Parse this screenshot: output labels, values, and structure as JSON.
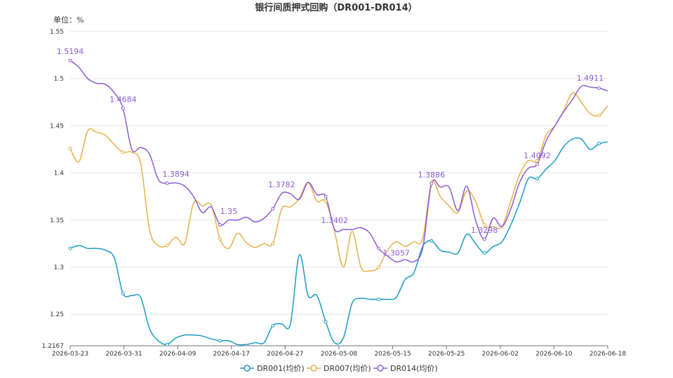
{
  "chart_data": {
    "type": "line",
    "title": "银行间质押式回购（DR001-DR014）",
    "unit_label": "单位：%",
    "x_ticks": [
      "2026-03-23",
      "2026-03-31",
      "2026-04-09",
      "2026-04-17",
      "2026-04-27",
      "2026-05-08",
      "2026-05-15",
      "2026-05-25",
      "2026-06-02",
      "2026-06-10",
      "2026-06-18"
    ],
    "y_ticks": [
      "1.55",
      "1.5",
      "1.45",
      "1.4",
      "1.35",
      "1.3",
      "1.25",
      "1.2167"
    ],
    "ylim": [
      1.2167,
      1.55
    ],
    "grid": true,
    "legend_position": "bottom",
    "series": [
      {
        "name": "DR001(均价)",
        "color": "#1a9bc4",
        "points": [
          [
            0,
            1.32
          ],
          [
            3,
            1.323
          ],
          [
            6,
            1.32
          ],
          [
            9,
            1.32
          ],
          [
            12,
            1.318
          ],
          [
            15,
            1.31
          ],
          [
            18,
            1.272
          ],
          [
            21,
            1.27
          ],
          [
            24,
            1.268
          ],
          [
            27,
            1.235
          ],
          [
            30,
            1.222
          ],
          [
            33,
            1.218
          ],
          [
            36,
            1.225
          ],
          [
            39,
            1.228
          ],
          [
            42,
            1.228
          ],
          [
            45,
            1.227
          ],
          [
            48,
            1.224
          ],
          [
            51,
            1.222
          ],
          [
            54,
            1.222
          ],
          [
            57,
            1.218
          ],
          [
            60,
            1.218
          ],
          [
            63,
            1.22
          ],
          [
            66,
            1.22
          ],
          [
            69,
            1.238
          ],
          [
            72,
            1.24
          ],
          [
            75,
            1.24
          ],
          [
            78,
            1.313
          ],
          [
            81,
            1.27
          ],
          [
            84,
            1.27
          ],
          [
            87,
            1.242
          ],
          [
            90,
            1.22
          ],
          [
            93,
            1.225
          ],
          [
            96,
            1.262
          ],
          [
            99,
            1.267
          ],
          [
            102,
            1.266
          ],
          [
            105,
            1.266
          ],
          [
            108,
            1.266
          ],
          [
            111,
            1.268
          ],
          [
            114,
            1.287
          ],
          [
            117,
            1.294
          ],
          [
            120,
            1.322
          ],
          [
            123,
            1.328
          ],
          [
            126,
            1.318
          ],
          [
            129,
            1.316
          ],
          [
            132,
            1.315
          ],
          [
            135,
            1.335
          ],
          [
            138,
            1.325
          ],
          [
            141,
            1.315
          ],
          [
            144,
            1.322
          ],
          [
            147,
            1.327
          ],
          [
            150,
            1.345
          ],
          [
            153,
            1.368
          ],
          [
            156,
            1.394
          ],
          [
            159,
            1.394
          ],
          [
            162,
            1.404
          ],
          [
            165,
            1.413
          ],
          [
            168,
            1.428
          ],
          [
            171,
            1.436
          ],
          [
            174,
            1.436
          ],
          [
            177,
            1.425
          ],
          [
            180,
            1.431
          ],
          [
            183,
            1.433
          ]
        ]
      },
      {
        "name": "DR007(均价)",
        "color": "#e6b04a",
        "points": [
          [
            0,
            1.426
          ],
          [
            3,
            1.412
          ],
          [
            6,
            1.445
          ],
          [
            9,
            1.443
          ],
          [
            12,
            1.44
          ],
          [
            15,
            1.43
          ],
          [
            18,
            1.422
          ],
          [
            21,
            1.422
          ],
          [
            24,
            1.41
          ],
          [
            27,
            1.34
          ],
          [
            30,
            1.323
          ],
          [
            33,
            1.323
          ],
          [
            36,
            1.332
          ],
          [
            39,
            1.325
          ],
          [
            42,
            1.368
          ],
          [
            45,
            1.365
          ],
          [
            48,
            1.366
          ],
          [
            51,
            1.33
          ],
          [
            54,
            1.32
          ],
          [
            57,
            1.336
          ],
          [
            60,
            1.326
          ],
          [
            63,
            1.321
          ],
          [
            66,
            1.325
          ],
          [
            69,
            1.325
          ],
          [
            72,
            1.362
          ],
          [
            75,
            1.364
          ],
          [
            78,
            1.373
          ],
          [
            81,
            1.39
          ],
          [
            84,
            1.37
          ],
          [
            87,
            1.37
          ],
          [
            90,
            1.338
          ],
          [
            93,
            1.3
          ],
          [
            96,
            1.338
          ],
          [
            99,
            1.3
          ],
          [
            102,
            1.296
          ],
          [
            105,
            1.3
          ],
          [
            108,
            1.318
          ],
          [
            111,
            1.327
          ],
          [
            114,
            1.322
          ],
          [
            117,
            1.327
          ],
          [
            120,
            1.33
          ],
          [
            123,
            1.39
          ],
          [
            126,
            1.375
          ],
          [
            129,
            1.365
          ],
          [
            132,
            1.358
          ],
          [
            135,
            1.381
          ],
          [
            138,
            1.37
          ],
          [
            141,
            1.345
          ],
          [
            144,
            1.343
          ],
          [
            147,
            1.343
          ],
          [
            150,
            1.37
          ],
          [
            153,
            1.398
          ],
          [
            156,
            1.413
          ],
          [
            159,
            1.413
          ],
          [
            162,
            1.44
          ],
          [
            165,
            1.45
          ],
          [
            168,
            1.466
          ],
          [
            171,
            1.485
          ],
          [
            174,
            1.475
          ],
          [
            177,
            1.463
          ],
          [
            180,
            1.461
          ],
          [
            183,
            1.471
          ]
        ]
      },
      {
        "name": "DR014(均价)",
        "color": "#8c5cd6",
        "points": [
          [
            0,
            1.5194
          ],
          [
            3,
            1.512
          ],
          [
            6,
            1.5
          ],
          [
            9,
            1.495
          ],
          [
            12,
            1.494
          ],
          [
            15,
            1.485
          ],
          [
            18,
            1.4684
          ],
          [
            21,
            1.425
          ],
          [
            24,
            1.427
          ],
          [
            27,
            1.42
          ],
          [
            30,
            1.393
          ],
          [
            33,
            1.389
          ],
          [
            36,
            1.3894
          ],
          [
            39,
            1.386
          ],
          [
            42,
            1.375
          ],
          [
            45,
            1.358
          ],
          [
            48,
            1.364
          ],
          [
            51,
            1.345
          ],
          [
            54,
            1.35
          ],
          [
            57,
            1.35
          ],
          [
            60,
            1.353
          ],
          [
            63,
            1.348
          ],
          [
            66,
            1.352
          ],
          [
            69,
            1.362
          ],
          [
            72,
            1.3782
          ],
          [
            75,
            1.378
          ],
          [
            78,
            1.372
          ],
          [
            81,
            1.39
          ],
          [
            84,
            1.377
          ],
          [
            87,
            1.375
          ],
          [
            90,
            1.3402
          ],
          [
            93,
            1.34
          ],
          [
            96,
            1.34
          ],
          [
            99,
            1.342
          ],
          [
            102,
            1.336
          ],
          [
            105,
            1.32
          ],
          [
            108,
            1.312
          ],
          [
            111,
            1.3057
          ],
          [
            114,
            1.308
          ],
          [
            117,
            1.306
          ],
          [
            120,
            1.32
          ],
          [
            123,
            1.3886
          ],
          [
            126,
            1.385
          ],
          [
            129,
            1.385
          ],
          [
            132,
            1.36
          ],
          [
            135,
            1.386
          ],
          [
            138,
            1.35
          ],
          [
            141,
            1.3298
          ],
          [
            144,
            1.352
          ],
          [
            147,
            1.343
          ],
          [
            150,
            1.362
          ],
          [
            153,
            1.39
          ],
          [
            156,
            1.405
          ],
          [
            159,
            1.4092
          ],
          [
            162,
            1.434
          ],
          [
            165,
            1.45
          ],
          [
            168,
            1.465
          ],
          [
            171,
            1.478
          ],
          [
            174,
            1.492
          ],
          [
            177,
            1.4911
          ],
          [
            180,
            1.49
          ],
          [
            183,
            1.487
          ]
        ]
      }
    ],
    "markers": {
      "DR001(均价)": [
        0,
        18,
        33,
        51,
        69,
        87,
        105,
        123,
        141,
        159,
        180
      ],
      "DR007(均价)": [
        0,
        18,
        33,
        51,
        69,
        87,
        105,
        123,
        141,
        159,
        180
      ],
      "DR014(均价)": [
        0,
        18,
        33,
        51,
        69,
        87,
        105,
        123,
        141,
        159,
        180
      ]
    },
    "data_labels": [
      {
        "series": "DR014(均价)",
        "x": 0,
        "value": "1.5194"
      },
      {
        "series": "DR014(均价)",
        "x": 18,
        "value": "1.4684"
      },
      {
        "series": "DR014(均价)",
        "x": 36,
        "value": "1.3894"
      },
      {
        "series": "DR014(均价)",
        "x": 54,
        "value": "1.35"
      },
      {
        "series": "DR014(均价)",
        "x": 72,
        "value": "1.3782"
      },
      {
        "series": "DR014(均价)",
        "x": 90,
        "value": "1.3402"
      },
      {
        "series": "DR014(均价)",
        "x": 111,
        "value": "1.3057"
      },
      {
        "series": "DR014(均价)",
        "x": 123,
        "value": "1.3886"
      },
      {
        "series": "DR014(均价)",
        "x": 141,
        "value": "1.3298"
      },
      {
        "series": "DR014(均价)",
        "x": 159,
        "value": "1.4092"
      },
      {
        "series": "DR014(均价)",
        "x": 177,
        "value": "1.4911"
      }
    ]
  }
}
